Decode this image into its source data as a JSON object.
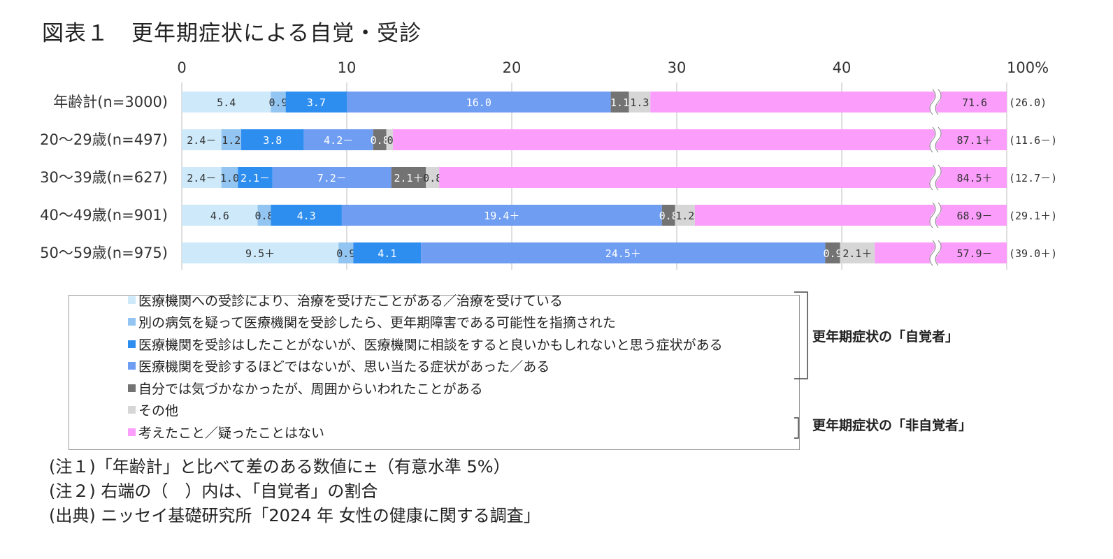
{
  "title": "図表１　更年期症状による自覚・受診",
  "chart_data": {
    "type": "bar",
    "orientation": "horizontal",
    "stacked": true,
    "axis_break": true,
    "x_ticks": [
      "0",
      "10",
      "20",
      "30",
      "40",
      "100%"
    ],
    "xlim": [
      0,
      100
    ],
    "categories": [
      "年齢計(n=3000)",
      "20～29歳(n=497)",
      "30～39歳(n=627)",
      "40～49歳(n=901)",
      "50～59歳(n=975)"
    ],
    "series": [
      {
        "name": "医療機関への受診により、治療を受けたことがある／治療を受けている",
        "color": "#cde9fa",
        "values": [
          5.4,
          2.4,
          2.4,
          4.6,
          9.5
        ],
        "labels": [
          "5.4",
          "2.4－",
          "2.4－",
          "4.6",
          "9.5＋"
        ]
      },
      {
        "name": "別の病気を疑って医療機関を受診したら、更年期障害である可能性を指摘された",
        "color": "#92c5f2",
        "values": [
          0.9,
          1.2,
          1.0,
          0.8,
          0.9
        ],
        "labels": [
          "0.9",
          "1.2",
          "1.0",
          "0.8",
          "0.9"
        ]
      },
      {
        "name": "医療機関を受診はしたことがないが、医療機関に相談をすると良いかもしれないと思う症状がある",
        "color": "#2e8ef0",
        "values": [
          3.7,
          3.8,
          2.1,
          4.3,
          4.1
        ],
        "labels": [
          "3.7",
          "3.8",
          "2.1－",
          "4.3",
          "4.1"
        ]
      },
      {
        "name": "医療機関を受診するほどではないが、思い当たる症状があった／ある",
        "color": "#6f9df2",
        "values": [
          16.0,
          4.2,
          7.2,
          19.4,
          24.5
        ],
        "labels": [
          "16.0",
          "4.2－",
          "7.2－",
          "19.4＋",
          "24.5＋"
        ]
      },
      {
        "name": "自分では気づかなかったが、周囲からいわれたことがある",
        "color": "#737373",
        "values": [
          1.1,
          0.8,
          2.1,
          0.8,
          0.9
        ],
        "labels": [
          "1.1",
          "0.8",
          "2.1＋",
          "0.8",
          "0.9"
        ]
      },
      {
        "name": "その他",
        "color": "#d6d6d6",
        "values": [
          1.3,
          0.4,
          0.8,
          1.2,
          2.1
        ],
        "labels": [
          "1.3",
          "0.4",
          "0.8",
          "1.2",
          "2.1＋"
        ]
      },
      {
        "name": "考えたこと／疑ったことはない",
        "color": "#fb9dfb",
        "values": [
          71.6,
          87.1,
          84.5,
          68.9,
          57.9
        ],
        "labels": [
          "71.6",
          "87.1＋",
          "84.5＋",
          "68.9－",
          "57.9－"
        ]
      }
    ],
    "aware_ratio_labels": [
      "(26.0)",
      "(11.6－)",
      "(12.7－)",
      "(29.1＋)",
      "(39.0＋)"
    ]
  },
  "legend_groups": [
    {
      "label": "更年期症状の「自覚者」"
    },
    {
      "label": "更年期症状の「非自覚者」"
    }
  ],
  "notes": [
    "(注１)「年齢計」と比べて差のある数値に±（有意水準 5%）",
    "(注２) 右端の（　）内は、「自覚者」の割合",
    "(出典) ニッセイ基礎研究所「2024 年 女性の健康に関する調査」"
  ]
}
